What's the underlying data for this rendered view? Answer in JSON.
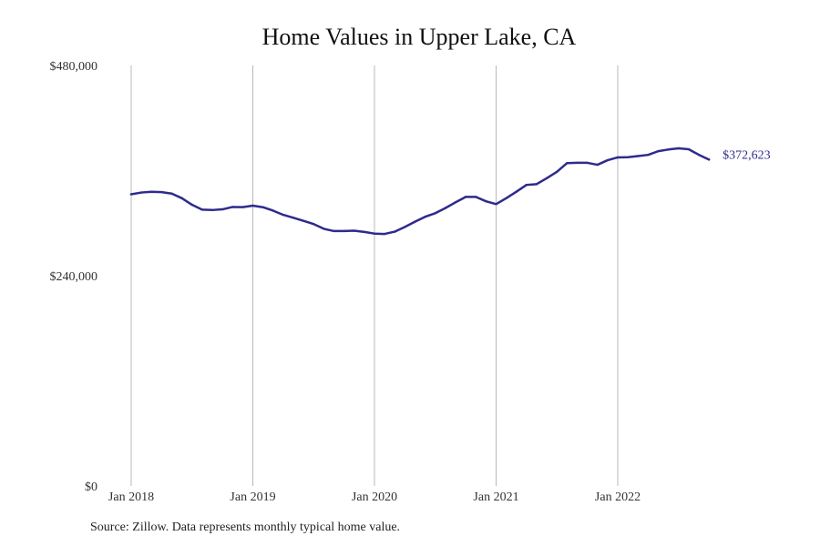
{
  "colors": {
    "line": "#2e2b8c",
    "grid": "#b8b8b8",
    "text": "#222222"
  },
  "source_note": "Source: Zillow. Data represents monthly typical home value.",
  "chart_data": {
    "type": "line",
    "title": "Home Values in Upper Lake, CA",
    "xlabel": "",
    "ylabel": "",
    "ylim": [
      0,
      480000
    ],
    "y_ticks": [
      {
        "value": 0,
        "label": "$0"
      },
      {
        "value": 240000,
        "label": "$240,000"
      },
      {
        "value": 480000,
        "label": "$480,000"
      }
    ],
    "x_ticks": [
      {
        "value": "2018-01",
        "label": "Jan 2018"
      },
      {
        "value": "2019-01",
        "label": "Jan 2019"
      },
      {
        "value": "2020-01",
        "label": "Jan 2020"
      },
      {
        "value": "2021-01",
        "label": "Jan 2021"
      },
      {
        "value": "2022-01",
        "label": "Jan 2022"
      }
    ],
    "grid": "vertical",
    "end_label": "$372,623",
    "series": [
      {
        "x": [
          "2018-01",
          "2018-02",
          "2018-03",
          "2018-04",
          "2018-05",
          "2018-06",
          "2018-07",
          "2018-08",
          "2018-09",
          "2018-10",
          "2018-11",
          "2018-12",
          "2019-01",
          "2019-02",
          "2019-03",
          "2019-04",
          "2019-05",
          "2019-06",
          "2019-07",
          "2019-08",
          "2019-09",
          "2019-10",
          "2019-11",
          "2019-12",
          "2020-01",
          "2020-02",
          "2020-03",
          "2020-04",
          "2020-05",
          "2020-06",
          "2020-07",
          "2020-08",
          "2020-09",
          "2020-10",
          "2020-11",
          "2020-12",
          "2021-01",
          "2021-02",
          "2021-03",
          "2021-04",
          "2021-05",
          "2021-06",
          "2021-07",
          "2021-08",
          "2021-09",
          "2021-10",
          "2021-11",
          "2021-12",
          "2022-01",
          "2022-02",
          "2022-03",
          "2022-04",
          "2022-05",
          "2022-06",
          "2022-07",
          "2022-08",
          "2022-09",
          "2022-10"
        ],
        "values": [
          333000,
          335000,
          335800,
          335500,
          333800,
          328500,
          321000,
          315500,
          315000,
          315800,
          318500,
          318300,
          320000,
          318200,
          314300,
          309500,
          306200,
          302700,
          299000,
          293600,
          291000,
          291100,
          291400,
          290000,
          288100,
          287700,
          290300,
          295700,
          301700,
          307300,
          311400,
          317300,
          323800,
          330000,
          330000,
          325000,
          321800,
          328500,
          335900,
          343700,
          344600,
          351400,
          358600,
          368600,
          368900,
          368900,
          366700,
          371900,
          375100,
          375300,
          376600,
          378000,
          382200,
          384100,
          385500,
          384400,
          378100,
          372623
        ]
      }
    ]
  }
}
